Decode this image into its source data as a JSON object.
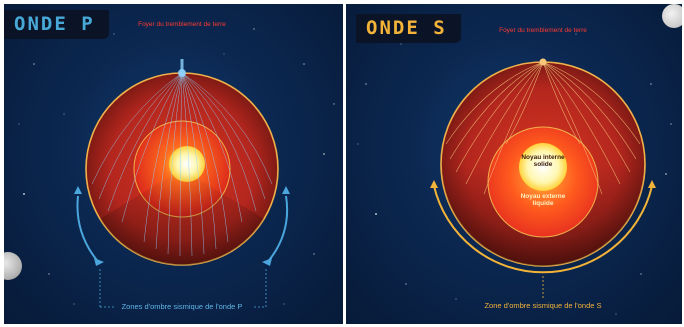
{
  "panels": {
    "p": {
      "title": "ONDE P",
      "source_label": "Foyer du tremblement de terre",
      "shadow_label": "Zones d'ombre sismique de l'onde P",
      "colors": {
        "title": "#48a9d8",
        "arrow": "#4aa6dc",
        "ray": "#8fd3ff"
      }
    },
    "s": {
      "title": "ONDE S",
      "source_label": "Foyer du tremblement de terre",
      "inner_core_label": "Noyau interne solide",
      "outer_core_label": "Noyau externe liquide",
      "shadow_label": "Zone d'ombre sismique de l'onde S",
      "colors": {
        "title": "#f3b338",
        "arrow": "#f3b338",
        "ray": "#f7c879"
      }
    }
  },
  "colors": {
    "mantle": "#b3261e",
    "core": "#e8321f",
    "inner_core": "#fff7b0",
    "space": "#0b2750"
  }
}
